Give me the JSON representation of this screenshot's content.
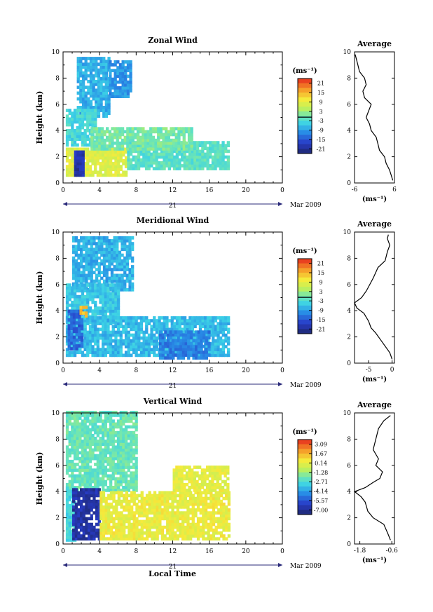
{
  "figure": {
    "xlabel": "Local Time",
    "panels": [
      {
        "title": "Zonal Wind",
        "ylabel": "Height (km)",
        "x_ticks": [
          "0",
          "4",
          "8",
          "12",
          "16",
          "20",
          "0"
        ],
        "y_ticks": [
          "0",
          "2",
          "4",
          "6",
          "8",
          "10"
        ],
        "date_day": "21",
        "date_label": "Mar 2009",
        "unit_label": "(ms⁻¹)",
        "colorbar_ticks": [
          "21",
          "15",
          "9",
          "3",
          "-3",
          "-9",
          "-15",
          "-21"
        ],
        "avg_title": "Average",
        "avg_x_ticks": [
          "-6",
          "6"
        ],
        "avg_y_ticks": [
          "0",
          "2",
          "4",
          "6",
          "8",
          "10"
        ],
        "avg_unit": "(ms⁻¹)"
      },
      {
        "title": "Meridional Wind",
        "ylabel": "Height (km)",
        "x_ticks": [
          "0",
          "4",
          "8",
          "12",
          "16",
          "20",
          "0"
        ],
        "y_ticks": [
          "0",
          "2",
          "4",
          "6",
          "8",
          "10"
        ],
        "date_day": "21",
        "date_label": "Mar 2009",
        "unit_label": "(ms⁻¹)",
        "colorbar_ticks": [
          "21",
          "15",
          "9",
          "3",
          "-3",
          "-9",
          "-15",
          "-21"
        ],
        "avg_title": "Average",
        "avg_x_ticks": [
          "-5",
          "0"
        ],
        "avg_y_ticks": [
          "0",
          "2",
          "4",
          "6",
          "8",
          "10"
        ],
        "avg_unit": "(ms⁻¹)"
      },
      {
        "title": "Vertical Wind",
        "ylabel": "Height (km)",
        "x_ticks": [
          "0",
          "4",
          "8",
          "12",
          "16",
          "20",
          "0"
        ],
        "y_ticks": [
          "0",
          "2",
          "4",
          "6",
          "8",
          "10"
        ],
        "date_day": "21",
        "date_label": "Mar 2009",
        "unit_label": "(ms⁻¹)",
        "colorbar_ticks": [
          "3.09",
          "1.67",
          "0.14",
          "-1.28",
          "-2.71",
          "-4.14",
          "-5.57",
          "-7.00"
        ],
        "avg_title": "Average",
        "avg_x_ticks": [
          "-1.8",
          "-0.6"
        ],
        "avg_y_ticks": [
          "0",
          "2",
          "4",
          "6",
          "8",
          "10"
        ],
        "avg_unit": "(ms⁻¹)"
      }
    ]
  },
  "chart_data": [
    {
      "type": "heatmap",
      "title": "Zonal Wind",
      "xlabel": "",
      "ylabel": "Height (km)",
      "xlim": [
        0,
        24
      ],
      "ylim": [
        0,
        10
      ],
      "colorbar": {
        "label": "(ms⁻¹)",
        "range": [
          -24,
          24
        ],
        "ticks": [
          21,
          15,
          9,
          3,
          -3,
          -9,
          -15,
          -21
        ]
      },
      "regions": [
        {
          "x": [
            1.5,
            5.0
          ],
          "y": [
            5.0,
            9.5
          ],
          "value": -8
        },
        {
          "x": [
            5.0,
            7.5
          ],
          "y": [
            6.5,
            9.2
          ],
          "value": -10
        },
        {
          "x": [
            0.3,
            3.5
          ],
          "y": [
            2.8,
            5.5
          ],
          "value": -4
        },
        {
          "x": [
            0.3,
            7.0
          ],
          "y": [
            0.5,
            2.5
          ],
          "value": 8
        },
        {
          "x": [
            1.2,
            2.2
          ],
          "y": [
            0.5,
            2.3
          ],
          "value": -20
        },
        {
          "x": [
            7.0,
            18.0
          ],
          "y": [
            1.0,
            3.0
          ],
          "value": -2
        },
        {
          "x": [
            3.0,
            14.0
          ],
          "y": [
            2.5,
            4.2
          ],
          "value": 0
        }
      ],
      "average_profile": {
        "title": "Average",
        "xlim": [
          -6,
          6
        ],
        "ylim": [
          0,
          10
        ],
        "x": [
          5.5,
          5.0,
          4.5,
          3.5,
          3.0,
          1.5,
          1.0,
          0.5,
          -1.0,
          -1.5,
          -2.5,
          -1.0,
          -3.0,
          -3.5,
          -2.5,
          -3.0,
          -4.5,
          -5.0,
          -5.5,
          -5.8
        ],
        "y": [
          0.2,
          0.6,
          1.0,
          1.5,
          2.0,
          2.5,
          3.0,
          3.5,
          4.0,
          4.5,
          5.0,
          6.0,
          6.5,
          7.0,
          7.5,
          8.0,
          8.5,
          9.0,
          9.5,
          9.8
        ]
      }
    },
    {
      "type": "heatmap",
      "title": "Meridional Wind",
      "xlabel": "",
      "ylabel": "Height (km)",
      "xlim": [
        0,
        24
      ],
      "ylim": [
        0,
        10
      ],
      "colorbar": {
        "label": "(ms⁻¹)",
        "range": [
          -24,
          24
        ],
        "ticks": [
          21,
          15,
          9,
          3,
          -3,
          -9,
          -15,
          -21
        ]
      },
      "regions": [
        {
          "x": [
            1.0,
            7.5
          ],
          "y": [
            5.5,
            9.5
          ],
          "value": -8
        },
        {
          "x": [
            0.3,
            6.0
          ],
          "y": [
            3.0,
            6.0
          ],
          "value": -6
        },
        {
          "x": [
            0.3,
            18.0
          ],
          "y": [
            0.5,
            3.5
          ],
          "value": -7
        },
        {
          "x": [
            0.5,
            2.0
          ],
          "y": [
            1.0,
            4.0
          ],
          "value": -14
        },
        {
          "x": [
            1.8,
            2.6
          ],
          "y": [
            3.5,
            4.2
          ],
          "value": 14
        },
        {
          "x": [
            10.5,
            16.0
          ],
          "y": [
            0.3,
            2.5
          ],
          "value": -12
        }
      ],
      "average_profile": {
        "title": "Average",
        "xlim": [
          -8,
          0.5
        ],
        "ylim": [
          0,
          10
        ],
        "x": [
          0.0,
          -0.5,
          -1.5,
          -2.5,
          -3.5,
          -4.5,
          -5.0,
          -6.0,
          -7.5,
          -8.0,
          -6.5,
          -5.5,
          -4.0,
          -3.0,
          -1.5,
          -1.0,
          -0.5,
          -1.0,
          -0.8
        ],
        "y": [
          0.3,
          0.8,
          1.3,
          1.8,
          2.3,
          2.7,
          3.2,
          3.8,
          4.2,
          4.6,
          5.0,
          5.5,
          6.5,
          7.3,
          7.8,
          8.5,
          9.0,
          9.5,
          9.8
        ]
      }
    },
    {
      "type": "heatmap",
      "title": "Vertical Wind",
      "xlabel": "Local Time",
      "ylabel": "Height (km)",
      "xlim": [
        0,
        24
      ],
      "ylim": [
        0,
        10
      ],
      "colorbar": {
        "label": "(ms⁻¹)",
        "range": [
          -7.7,
          3.8
        ],
        "ticks": [
          3.09,
          1.67,
          0.14,
          -1.28,
          -2.71,
          -4.14,
          -5.57,
          -7.0
        ]
      },
      "regions": [
        {
          "x": [
            0.3,
            8.0
          ],
          "y": [
            4.0,
            10.0
          ],
          "value": -2.2
        },
        {
          "x": [
            0.3,
            1.2
          ],
          "y": [
            0.2,
            4.2
          ],
          "value": -3.0
        },
        {
          "x": [
            1.0,
            4.0
          ],
          "y": [
            0.3,
            4.2
          ],
          "value": -6.8
        },
        {
          "x": [
            4.0,
            18.0
          ],
          "y": [
            0.3,
            4.0
          ],
          "value": 0.2
        },
        {
          "x": [
            12.0,
            18.0
          ],
          "y": [
            4.0,
            5.8
          ],
          "value": 0.1
        }
      ],
      "average_profile": {
        "title": "Average",
        "xlim": [
          -2.0,
          -0.5
        ],
        "ylim": [
          0,
          10
        ],
        "x": [
          -0.65,
          -0.75,
          -0.9,
          -1.3,
          -1.5,
          -1.6,
          -1.75,
          -2.0,
          -1.6,
          -1.3,
          -1.05,
          -0.95,
          -1.2,
          -1.1,
          -1.3,
          -1.2,
          -1.1,
          -0.9,
          -0.65
        ],
        "y": [
          0.3,
          0.8,
          1.5,
          2.0,
          2.5,
          3.2,
          3.6,
          4.0,
          4.3,
          4.7,
          5.0,
          5.5,
          6.0,
          6.5,
          7.2,
          8.0,
          8.8,
          9.4,
          9.8
        ]
      }
    }
  ]
}
